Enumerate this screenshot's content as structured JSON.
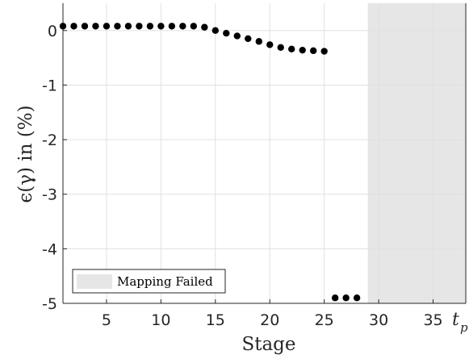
{
  "chart_data": {
    "type": "scatter",
    "title": "",
    "xlabel": "Stage",
    "ylabel": "ϵ(γ) in (%)",
    "xlim": [
      1,
      38
    ],
    "ylim": [
      -5,
      0.5
    ],
    "grid": true,
    "x_ticks": [
      "5",
      "10",
      "15",
      "20",
      "25",
      "30",
      "35"
    ],
    "y_ticks": [
      "0",
      "-1",
      "-2",
      "-3",
      "-4",
      "-5"
    ],
    "tp_label": "t",
    "tp_sub": "p",
    "points": {
      "x": [
        1,
        2,
        3,
        4,
        5,
        6,
        7,
        8,
        9,
        10,
        11,
        12,
        13,
        14,
        15,
        16,
        17,
        18,
        19,
        20,
        21,
        22,
        23,
        24,
        25,
        26,
        27,
        28
      ],
      "y": [
        0.08,
        0.08,
        0.08,
        0.08,
        0.08,
        0.08,
        0.08,
        0.08,
        0.08,
        0.08,
        0.08,
        0.08,
        0.08,
        0.06,
        0.0,
        -0.05,
        -0.1,
        -0.15,
        -0.2,
        -0.26,
        -0.31,
        -0.34,
        -0.36,
        -0.37,
        -0.38,
        -4.9,
        -4.9,
        -4.9
      ]
    },
    "shaded_region": {
      "x_range": [
        29,
        38
      ],
      "label": "Mapping Failed",
      "color": "#e6e6e6"
    },
    "legend": {
      "entries": [
        "Mapping Failed"
      ],
      "placement": "bottom-left"
    },
    "colors": {
      "points": "#000000",
      "shade": "#e6e6e6",
      "grid": "#e0e0e0",
      "axis": "#262626"
    }
  }
}
